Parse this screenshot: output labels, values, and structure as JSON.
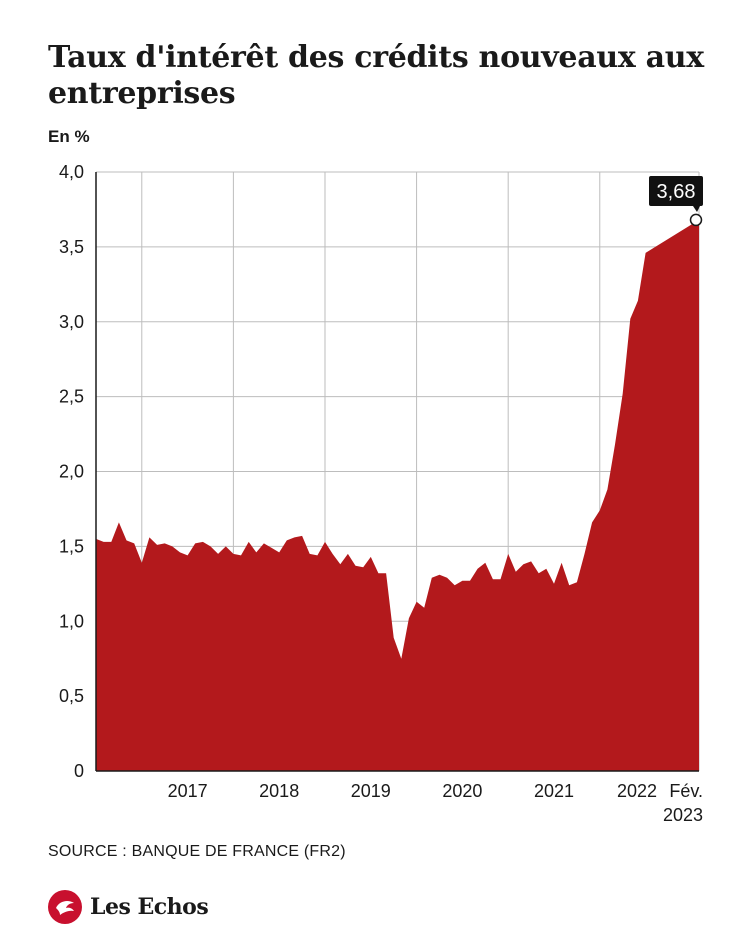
{
  "header": {
    "title": "Taux d'intérêt des crédits nouveaux aux entreprises",
    "unit": "En %"
  },
  "footer": {
    "source": "SOURCE : BANQUE DE FRANCE (FR2)",
    "logo_text": "Les Echos"
  },
  "colors": {
    "area": "#b3191c",
    "grid": "#bdbdbd",
    "axis": "#1a1a1a",
    "callout_bg": "#111111",
    "callout_text": "#ffffff"
  },
  "chart_data": {
    "type": "area",
    "title": "Taux d'intérêt des crédits nouveaux aux entreprises",
    "ylabel": "En %",
    "xlabel": "",
    "ylim": [
      0,
      4.0
    ],
    "yticks": [
      0,
      0.5,
      1.0,
      1.5,
      2.0,
      2.5,
      3.0,
      3.5,
      4.0
    ],
    "ytick_labels": [
      "0",
      "0,5",
      "1,0",
      "1,5",
      "2,0",
      "2,5",
      "3,0",
      "3,5",
      "4,0"
    ],
    "xlim": [
      "2016-07",
      "2023-02"
    ],
    "xtick_labels": [
      "2017",
      "2018",
      "2019",
      "2020",
      "2021",
      "2022",
      "Fév.\n2023"
    ],
    "grid": true,
    "annotation": {
      "label": "3,68",
      "x": "2023-02",
      "y": 3.68
    },
    "series": [
      {
        "values": [
          {
            "x": "2016-07",
            "y": 1.55
          },
          {
            "x": "2016-08",
            "y": 1.53
          },
          {
            "x": "2016-09",
            "y": 1.53
          },
          {
            "x": "2016-10",
            "y": 1.66
          },
          {
            "x": "2016-11",
            "y": 1.54
          },
          {
            "x": "2016-12",
            "y": 1.52
          },
          {
            "x": "2017-01",
            "y": 1.39
          },
          {
            "x": "2017-02",
            "y": 1.56
          },
          {
            "x": "2017-03",
            "y": 1.51
          },
          {
            "x": "2017-04",
            "y": 1.52
          },
          {
            "x": "2017-05",
            "y": 1.5
          },
          {
            "x": "2017-06",
            "y": 1.46
          },
          {
            "x": "2017-07",
            "y": 1.44
          },
          {
            "x": "2017-08",
            "y": 1.52
          },
          {
            "x": "2017-09",
            "y": 1.53
          },
          {
            "x": "2017-10",
            "y": 1.5
          },
          {
            "x": "2017-11",
            "y": 1.45
          },
          {
            "x": "2017-12",
            "y": 1.5
          },
          {
            "x": "2018-01",
            "y": 1.45
          },
          {
            "x": "2018-02",
            "y": 1.44
          },
          {
            "x": "2018-03",
            "y": 1.53
          },
          {
            "x": "2018-04",
            "y": 1.46
          },
          {
            "x": "2018-05",
            "y": 1.52
          },
          {
            "x": "2018-06",
            "y": 1.49
          },
          {
            "x": "2018-07",
            "y": 1.46
          },
          {
            "x": "2018-08",
            "y": 1.54
          },
          {
            "x": "2018-09",
            "y": 1.56
          },
          {
            "x": "2018-10",
            "y": 1.57
          },
          {
            "x": "2018-11",
            "y": 1.45
          },
          {
            "x": "2018-12",
            "y": 1.44
          },
          {
            "x": "2019-01",
            "y": 1.53
          },
          {
            "x": "2019-02",
            "y": 1.45
          },
          {
            "x": "2019-03",
            "y": 1.38
          },
          {
            "x": "2019-04",
            "y": 1.45
          },
          {
            "x": "2019-05",
            "y": 1.37
          },
          {
            "x": "2019-06",
            "y": 1.36
          },
          {
            "x": "2019-07",
            "y": 1.43
          },
          {
            "x": "2019-08",
            "y": 1.32
          },
          {
            "x": "2019-09",
            "y": 1.32
          },
          {
            "x": "2019-10",
            "y": 0.89
          },
          {
            "x": "2019-11",
            "y": 0.75
          },
          {
            "x": "2019-12",
            "y": 1.02
          },
          {
            "x": "2020-01",
            "y": 1.13
          },
          {
            "x": "2020-02",
            "y": 1.09
          },
          {
            "x": "2020-03",
            "y": 1.29
          },
          {
            "x": "2020-04",
            "y": 1.31
          },
          {
            "x": "2020-05",
            "y": 1.29
          },
          {
            "x": "2020-06",
            "y": 1.24
          },
          {
            "x": "2020-07",
            "y": 1.27
          },
          {
            "x": "2020-08",
            "y": 1.27
          },
          {
            "x": "2020-09",
            "y": 1.35
          },
          {
            "x": "2020-10",
            "y": 1.39
          },
          {
            "x": "2020-11",
            "y": 1.28
          },
          {
            "x": "2020-12",
            "y": 1.28
          },
          {
            "x": "2021-01",
            "y": 1.45
          },
          {
            "x": "2021-02",
            "y": 1.33
          },
          {
            "x": "2021-03",
            "y": 1.38
          },
          {
            "x": "2021-04",
            "y": 1.4
          },
          {
            "x": "2021-05",
            "y": 1.32
          },
          {
            "x": "2021-06",
            "y": 1.35
          },
          {
            "x": "2021-07",
            "y": 1.25
          },
          {
            "x": "2021-08",
            "y": 1.39
          },
          {
            "x": "2021-09",
            "y": 1.24
          },
          {
            "x": "2021-10",
            "y": 1.26
          },
          {
            "x": "2021-11",
            "y": 1.45
          },
          {
            "x": "2021-12",
            "y": 1.66
          },
          {
            "x": "2022-01",
            "y": 1.74
          },
          {
            "x": "2022-02",
            "y": 1.88
          },
          {
            "x": "2022-03",
            "y": 2.18
          },
          {
            "x": "2022-04",
            "y": 2.52
          },
          {
            "x": "2022-05",
            "y": 3.02
          },
          {
            "x": "2022-06",
            "y": 3.14
          },
          {
            "x": "2022-07",
            "y": 3.46
          },
          {
            "x": "2023-02",
            "y": 3.68
          }
        ]
      }
    ]
  }
}
